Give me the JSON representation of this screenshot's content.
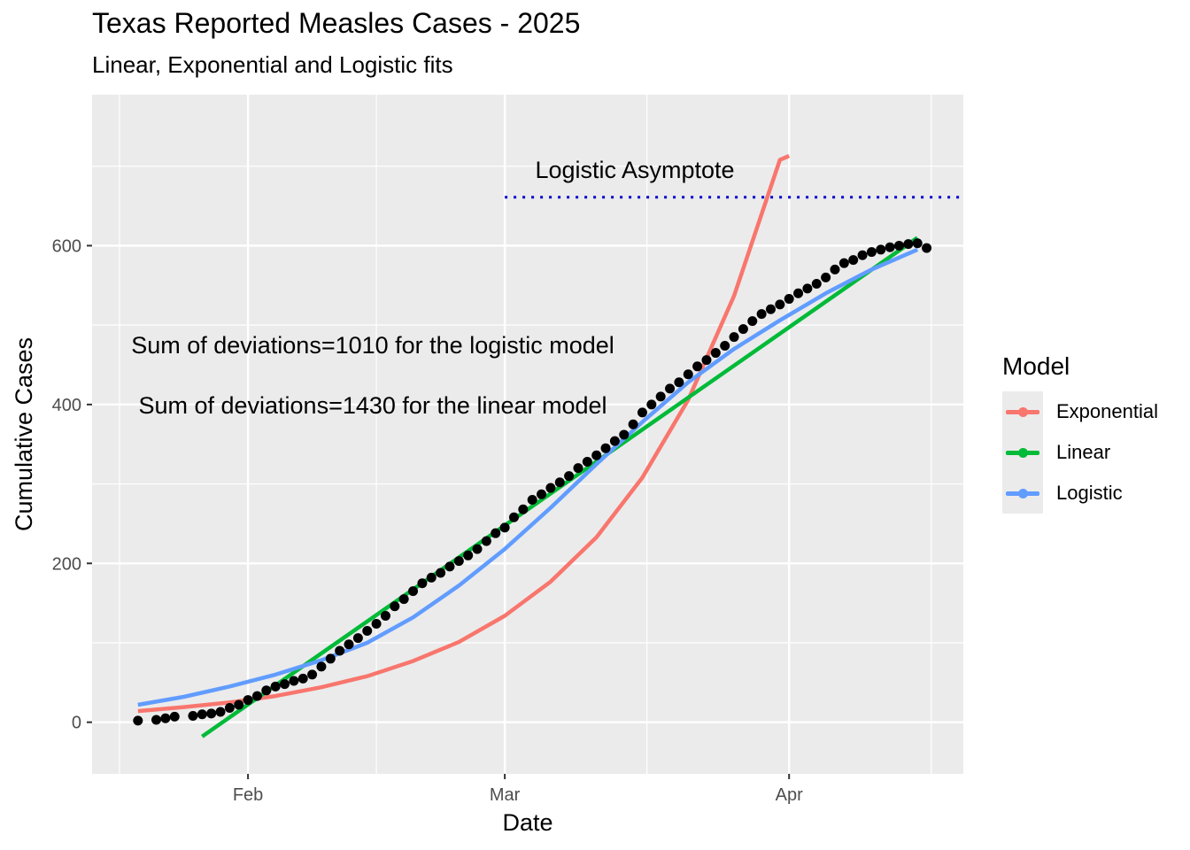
{
  "title": "Texas Reported Measles Cases - 2025",
  "subtitle": "Linear, Exponential and Logistic fits",
  "chart_data": {
    "type": "line",
    "title": "Texas Reported Measles Cases - 2025",
    "subtitle": "Linear, Exponential and Logistic fits",
    "xlabel": "Date",
    "ylabel": "Cumulative Cases",
    "x_type": "date",
    "xlim": [
      "2025-01-15",
      "2025-04-20"
    ],
    "ylim": [
      -65,
      790
    ],
    "x_ticks": [
      {
        "date": "2025-02-01",
        "label": "Feb"
      },
      {
        "date": "2025-03-01",
        "label": "Mar"
      },
      {
        "date": "2025-04-01",
        "label": "Apr"
      }
    ],
    "y_ticks": [
      0,
      200,
      400,
      600
    ],
    "grid": true,
    "legend": {
      "title": "Model",
      "position": "right"
    },
    "observed": {
      "dates": [
        "2025-01-20",
        "2025-01-22",
        "2025-01-23",
        "2025-01-24",
        "2025-01-26",
        "2025-01-27",
        "2025-01-28",
        "2025-01-29",
        "2025-01-30",
        "2025-01-31",
        "2025-02-01",
        "2025-02-02",
        "2025-02-03",
        "2025-02-04",
        "2025-02-05",
        "2025-02-06",
        "2025-02-07",
        "2025-02-08",
        "2025-02-09",
        "2025-02-10",
        "2025-02-11",
        "2025-02-12",
        "2025-02-13",
        "2025-02-14",
        "2025-02-15",
        "2025-02-16",
        "2025-02-17",
        "2025-02-18",
        "2025-02-19",
        "2025-02-20",
        "2025-02-21",
        "2025-02-22",
        "2025-02-23",
        "2025-02-24",
        "2025-02-25",
        "2025-02-26",
        "2025-02-27",
        "2025-02-28",
        "2025-03-01",
        "2025-03-02",
        "2025-03-03",
        "2025-03-04",
        "2025-03-05",
        "2025-03-06",
        "2025-03-07",
        "2025-03-08",
        "2025-03-09",
        "2025-03-10",
        "2025-03-11",
        "2025-03-12",
        "2025-03-13",
        "2025-03-14",
        "2025-03-15",
        "2025-03-16",
        "2025-03-17",
        "2025-03-18",
        "2025-03-19",
        "2025-03-20",
        "2025-03-21",
        "2025-03-22",
        "2025-03-23",
        "2025-03-24",
        "2025-03-25",
        "2025-03-26",
        "2025-03-27",
        "2025-03-28",
        "2025-03-29",
        "2025-03-30",
        "2025-03-31",
        "2025-04-01",
        "2025-04-02",
        "2025-04-03",
        "2025-04-04",
        "2025-04-05",
        "2025-04-06",
        "2025-04-07",
        "2025-04-08",
        "2025-04-09",
        "2025-04-10",
        "2025-04-11",
        "2025-04-12",
        "2025-04-13",
        "2025-04-14",
        "2025-04-15",
        "2025-04-16"
      ],
      "values": [
        2,
        3,
        5,
        7,
        8,
        10,
        11,
        13,
        18,
        22,
        28,
        33,
        40,
        45,
        48,
        52,
        55,
        60,
        70,
        80,
        90,
        98,
        106,
        115,
        124,
        134,
        146,
        155,
        165,
        175,
        182,
        188,
        196,
        203,
        210,
        218,
        228,
        238,
        245,
        258,
        268,
        280,
        287,
        295,
        302,
        310,
        320,
        328,
        336,
        345,
        354,
        362,
        375,
        390,
        400,
        410,
        420,
        428,
        438,
        448,
        456,
        465,
        474,
        485,
        495,
        505,
        514,
        520,
        526,
        533,
        540,
        546,
        552,
        560,
        570,
        578,
        582,
        588,
        592,
        595,
        598,
        600,
        602,
        603,
        597
      ]
    },
    "series": [
      {
        "name": "Exponential",
        "color": "#F8766D",
        "dates": [
          "2025-01-20",
          "2025-01-25",
          "2025-01-30",
          "2025-02-04",
          "2025-02-09",
          "2025-02-14",
          "2025-02-19",
          "2025-02-24",
          "2025-03-01",
          "2025-03-06",
          "2025-03-11",
          "2025-03-16",
          "2025-03-21",
          "2025-03-26",
          "2025-03-31",
          "2025-04-01"
        ],
        "values": [
          14,
          19,
          25,
          33,
          44,
          58,
          77,
          101,
          134,
          177,
          233,
          308,
          406,
          537,
          708,
          713
        ]
      },
      {
        "name": "Linear",
        "color": "#00BA38",
        "dates": [
          "2025-01-27",
          "2025-04-15"
        ],
        "values": [
          -18,
          610
        ]
      },
      {
        "name": "Logistic",
        "color": "#619CFF",
        "dates": [
          "2025-01-20",
          "2025-01-25",
          "2025-01-30",
          "2025-02-04",
          "2025-02-09",
          "2025-02-14",
          "2025-02-19",
          "2025-02-24",
          "2025-03-01",
          "2025-03-06",
          "2025-03-11",
          "2025-03-16",
          "2025-03-21",
          "2025-03-26",
          "2025-03-31",
          "2025-04-05",
          "2025-04-10",
          "2025-04-15"
        ],
        "values": [
          22,
          32,
          45,
          60,
          78,
          100,
          132,
          172,
          218,
          270,
          325,
          378,
          428,
          470,
          506,
          540,
          570,
          595
        ]
      }
    ],
    "reference_line": {
      "label": "Logistic Asymptote",
      "y": 661,
      "from_date": "2025-03-01",
      "color": "#0000CD",
      "style": "dotted"
    },
    "annotations": [
      "Sum of deviations=1010 for the logistic model",
      "Sum of deviations=1430 for the linear model"
    ]
  }
}
